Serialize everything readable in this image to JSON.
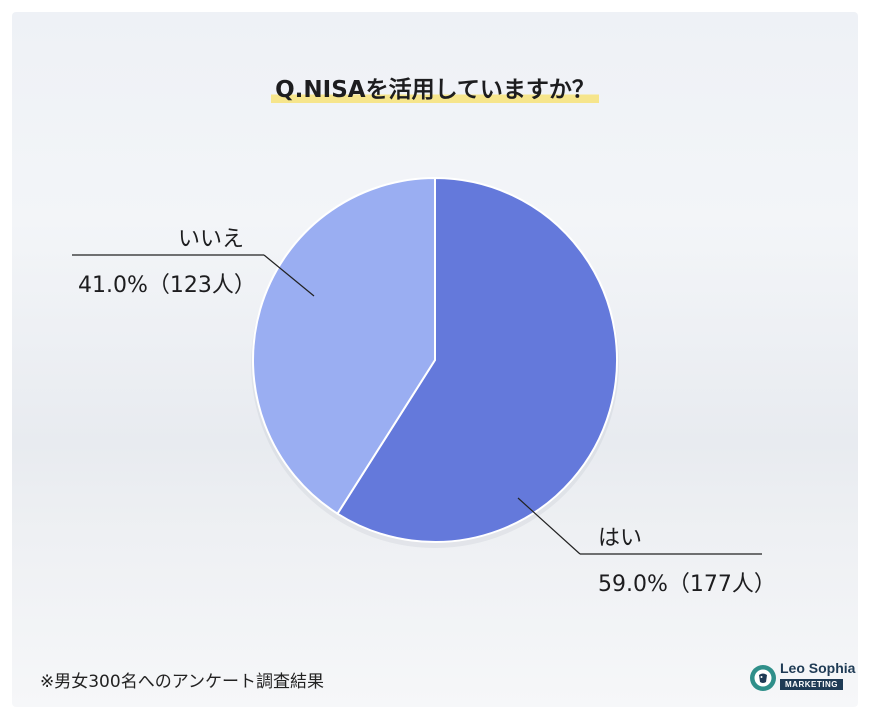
{
  "title": "Q.NISAを活用していますか？",
  "footnote": "※男女300名へのアンケート調査結果",
  "logo": {
    "name": "Leo Sophia",
    "sub": "MARKETING",
    "mark_icon": "lion-head-icon"
  },
  "chart_data": {
    "type": "pie",
    "title": "Q.NISAを活用していますか？",
    "slices": [
      {
        "label": "はい",
        "value": 59.0,
        "value_text": "59.0%",
        "count_text": "（177人）",
        "color": "#6479db"
      },
      {
        "label": "いいえ",
        "value": 41.0,
        "value_text": "41.0%",
        "count_text": "（123人）",
        "color": "#9aaef2"
      }
    ],
    "start": "12 o'clock",
    "direction": "clockwise"
  },
  "colors": {
    "yes": "#6479db",
    "no": "#9aaef2",
    "highlight": "#f6e58c",
    "text": "#1d1d1f"
  }
}
